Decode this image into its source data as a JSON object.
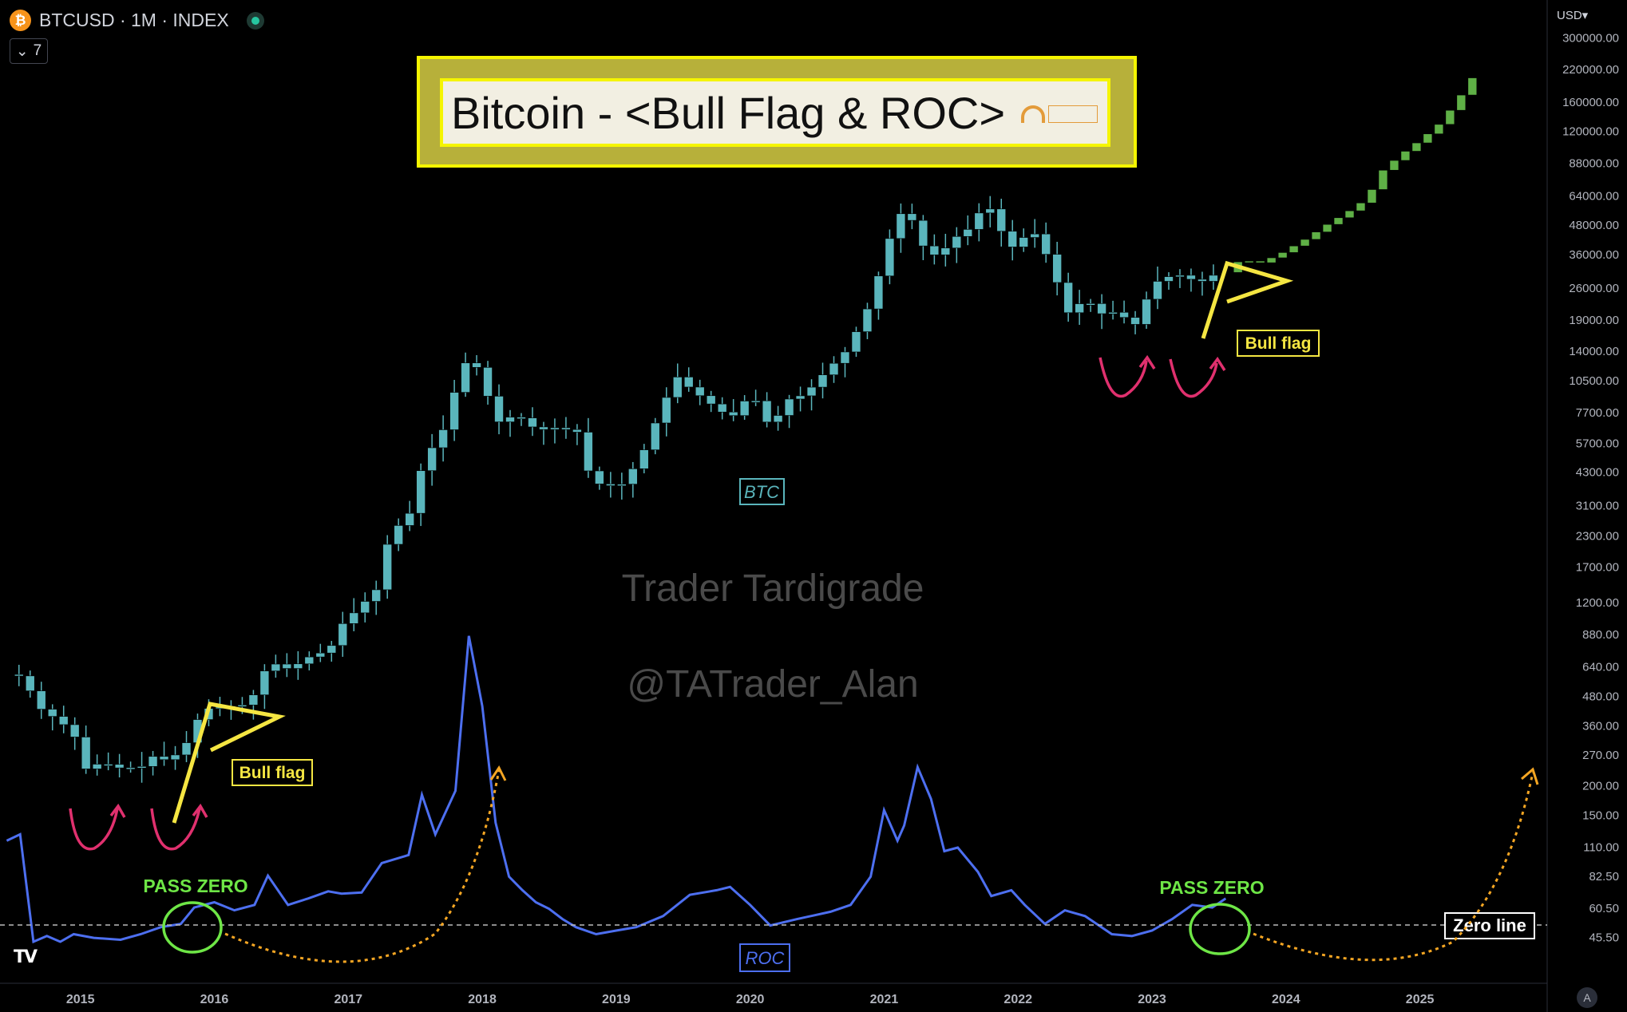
{
  "header": {
    "symbol": "BTCUSD · 1M · INDEX",
    "indicator_count": "7",
    "currency_button": "USD▾",
    "auto_button": "A"
  },
  "title": "Bitcoin - <Bull Flag & ROC>",
  "watermark": {
    "line1": "Trader Tardigrade",
    "line2": "@TATrader_Alan"
  },
  "annotations": {
    "bull_flag_left": "Bull flag",
    "bull_flag_right": "Bull flag",
    "btc_label": "BTC",
    "roc_label": "ROC",
    "pass_zero_left": "PASS ZERO",
    "pass_zero_right": "PASS ZERO",
    "zero_line": "Zero line"
  },
  "colors": {
    "candle": "#5ab5bc",
    "projection": "#5fb046",
    "roc": "#4d6ff0",
    "annotation_yellow": "#f5e642",
    "arrow_pink": "#e0306e",
    "arrow_orange": "#f5a623",
    "pass_zero_green": "#6ee646"
  },
  "chart_data": {
    "type": "candlestick",
    "title": "Bitcoin - <Bull Flag & ROC>",
    "scale": "log",
    "y_ticks": [
      "300000.00",
      "220000.00",
      "160000.00",
      "120000.00",
      "88000.00",
      "64000.00",
      "48000.00",
      "36000.00",
      "26000.00",
      "19000.00",
      "14000.00",
      "10500.00",
      "7700.00",
      "5700.00",
      "4300.00",
      "3100.00",
      "2300.00",
      "1700.00",
      "1200.00",
      "880.00",
      "640.00",
      "480.00",
      "360.00",
      "270.00",
      "200.00",
      "150.00",
      "110.00",
      "82.50",
      "60.50",
      "45.50"
    ],
    "x_ticks": [
      "2015",
      "2016",
      "2017",
      "2018",
      "2019",
      "2020",
      "2021",
      "2022",
      "2023",
      "2024",
      "2025"
    ],
    "x_range": [
      2014.4,
      2025.95
    ],
    "y_range": [
      37,
      320000
    ],
    "btc_close_path": [
      [
        2014.5,
        590
      ],
      [
        2014.6,
        580
      ],
      [
        2014.75,
        420
      ],
      [
        2014.9,
        370
      ],
      [
        2015.0,
        320
      ],
      [
        2015.05,
        230
      ],
      [
        2015.2,
        250
      ],
      [
        2015.35,
        235
      ],
      [
        2015.5,
        240
      ],
      [
        2015.6,
        270
      ],
      [
        2015.7,
        250
      ],
      [
        2015.85,
        310
      ],
      [
        2015.95,
        420
      ],
      [
        2016.1,
        430
      ],
      [
        2016.3,
        440
      ],
      [
        2016.45,
        670
      ],
      [
        2016.6,
        620
      ],
      [
        2016.75,
        700
      ],
      [
        2016.9,
        750
      ],
      [
        2017.0,
        970
      ],
      [
        2017.1,
        1100
      ],
      [
        2017.25,
        1350
      ],
      [
        2017.35,
        2300
      ],
      [
        2017.5,
        2850
      ],
      [
        2017.6,
        4700
      ],
      [
        2017.75,
        6450
      ],
      [
        2017.85,
        10000
      ],
      [
        2017.95,
        13800
      ],
      [
        2018.05,
        10200
      ],
      [
        2018.15,
        6900
      ],
      [
        2018.3,
        7500
      ],
      [
        2018.45,
        6400
      ],
      [
        2018.6,
        6600
      ],
      [
        2018.75,
        6300
      ],
      [
        2018.85,
        4000
      ],
      [
        2018.95,
        3700
      ],
      [
        2019.1,
        3800
      ],
      [
        2019.25,
        5300
      ],
      [
        2019.4,
        8500
      ],
      [
        2019.5,
        10800
      ],
      [
        2019.6,
        9600
      ],
      [
        2019.75,
        8300
      ],
      [
        2019.9,
        7200
      ],
      [
        2020.05,
        9300
      ],
      [
        2020.2,
        6400
      ],
      [
        2020.3,
        8600
      ],
      [
        2020.45,
        9100
      ],
      [
        2020.6,
        11300
      ],
      [
        2020.75,
        13800
      ],
      [
        2020.9,
        19700
      ],
      [
        2021.0,
        29000
      ],
      [
        2021.1,
        45000
      ],
      [
        2021.2,
        58000
      ],
      [
        2021.35,
        37000
      ],
      [
        2021.45,
        35000
      ],
      [
        2021.55,
        41500
      ],
      [
        2021.7,
        47000
      ],
      [
        2021.8,
        61300
      ],
      [
        2021.9,
        46300
      ],
      [
        2022.0,
        38500
      ],
      [
        2022.15,
        45500
      ],
      [
        2022.3,
        31800
      ],
      [
        2022.4,
        19900
      ],
      [
        2022.55,
        23300
      ],
      [
        2022.65,
        20000
      ],
      [
        2022.8,
        20500
      ],
      [
        2022.9,
        17200
      ],
      [
        2023.0,
        23100
      ],
      [
        2023.1,
        28500
      ],
      [
        2023.25,
        29200
      ],
      [
        2023.4,
        27200
      ],
      [
        2023.5,
        29200
      ]
    ],
    "projection_path": [
      [
        2023.6,
        30000
      ],
      [
        2023.7,
        34000
      ],
      [
        2023.85,
        33000
      ],
      [
        2024.0,
        36000
      ],
      [
        2024.2,
        42000
      ],
      [
        2024.35,
        48000
      ],
      [
        2024.5,
        54000
      ],
      [
        2024.65,
        62000
      ],
      [
        2024.75,
        80000
      ],
      [
        2024.9,
        95000
      ],
      [
        2025.05,
        110000
      ],
      [
        2025.2,
        130000
      ],
      [
        2025.35,
        170000
      ],
      [
        2025.5,
        230000
      ]
    ],
    "roc": {
      "name": "ROC",
      "zero_line_label": "60.50",
      "points": [
        [
          2014.45,
          140
        ],
        [
          2014.55,
          150
        ],
        [
          2014.65,
          47
        ],
        [
          2014.75,
          50
        ],
        [
          2014.85,
          47
        ],
        [
          2014.95,
          51
        ],
        [
          2015.1,
          49
        ],
        [
          2015.3,
          48
        ],
        [
          2015.45,
          51
        ],
        [
          2015.6,
          55
        ],
        [
          2015.75,
          57
        ],
        [
          2015.85,
          68
        ],
        [
          2016.0,
          72
        ],
        [
          2016.15,
          66
        ],
        [
          2016.3,
          70
        ],
        [
          2016.4,
          96
        ],
        [
          2016.55,
          70
        ],
        [
          2016.7,
          75
        ],
        [
          2016.85,
          81
        ],
        [
          2016.95,
          79
        ],
        [
          2017.1,
          80
        ],
        [
          2017.25,
          110
        ],
        [
          2017.45,
          120
        ],
        [
          2017.55,
          230
        ],
        [
          2017.65,
          150
        ],
        [
          2017.8,
          240
        ],
        [
          2017.9,
          1280
        ],
        [
          2018.0,
          600
        ],
        [
          2018.1,
          170
        ],
        [
          2018.2,
          95
        ],
        [
          2018.3,
          82
        ],
        [
          2018.4,
          72
        ],
        [
          2018.5,
          67
        ],
        [
          2018.6,
          60
        ],
        [
          2018.7,
          55
        ],
        [
          2018.85,
          51
        ],
        [
          2019.0,
          53
        ],
        [
          2019.15,
          55
        ],
        [
          2019.35,
          62
        ],
        [
          2019.55,
          78
        ],
        [
          2019.75,
          82
        ],
        [
          2019.85,
          85
        ],
        [
          2020.0,
          70
        ],
        [
          2020.15,
          56
        ],
        [
          2020.35,
          60
        ],
        [
          2020.6,
          65
        ],
        [
          2020.75,
          70
        ],
        [
          2020.9,
          95
        ],
        [
          2021.0,
          195
        ],
        [
          2021.1,
          140
        ],
        [
          2021.15,
          165
        ],
        [
          2021.25,
          310
        ],
        [
          2021.35,
          220
        ],
        [
          2021.45,
          125
        ],
        [
          2021.55,
          130
        ],
        [
          2021.7,
          100
        ],
        [
          2021.8,
          77
        ],
        [
          2021.95,
          82
        ],
        [
          2022.05,
          70
        ],
        [
          2022.2,
          57
        ],
        [
          2022.35,
          66
        ],
        [
          2022.5,
          62
        ],
        [
          2022.7,
          51
        ],
        [
          2022.85,
          50
        ],
        [
          2023.0,
          53
        ],
        [
          2023.15,
          60
        ],
        [
          2023.3,
          70
        ],
        [
          2023.45,
          68
        ],
        [
          2023.55,
          75
        ]
      ]
    }
  }
}
